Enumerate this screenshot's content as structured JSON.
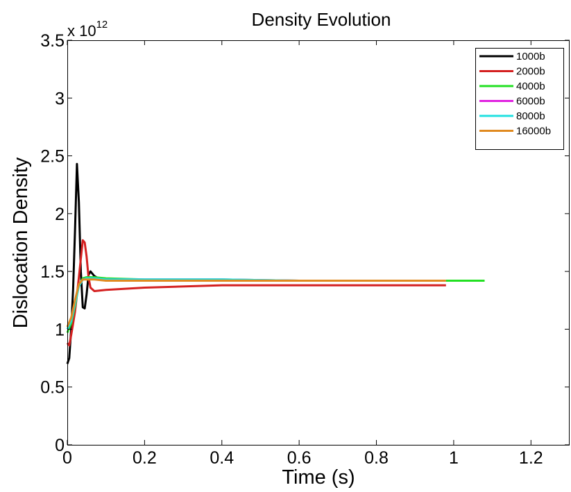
{
  "chart_data": {
    "type": "line",
    "title": "Density Evolution",
    "xlabel": "Time (s)",
    "ylabel": "Dislocation Density",
    "y_multiplier_base": "x 10",
    "y_multiplier_exponent": "12",
    "xlim": [
      0,
      1.3
    ],
    "ylim": [
      0,
      3.5
    ],
    "xticks": [
      0,
      0.2,
      0.4,
      0.6,
      0.8,
      1,
      1.2
    ],
    "xtick_labels": [
      "0",
      "0.2",
      "0.4",
      "0.6",
      "0.8",
      "1",
      "1.2"
    ],
    "yticks": [
      0,
      0.5,
      1,
      1.5,
      2,
      2.5,
      3,
      3.5
    ],
    "ytick_labels": [
      "0",
      "0.5",
      "1",
      "1.5",
      "2",
      "2.5",
      "3",
      "3.5"
    ],
    "grid": false,
    "legend_position": "top-right",
    "series": [
      {
        "name": "1000b",
        "color": "#000000",
        "x": [
          0,
          0.005,
          0.01,
          0.015,
          0.02,
          0.025,
          0.03,
          0.035,
          0.04,
          0.045,
          0.05,
          0.055,
          0.06,
          0.07,
          0.08,
          0.1,
          0.2,
          0.4,
          0.6,
          0.8,
          0.98
        ],
        "y": [
          0.7,
          0.75,
          1.0,
          1.35,
          1.85,
          2.43,
          2.1,
          1.5,
          1.19,
          1.18,
          1.3,
          1.47,
          1.5,
          1.46,
          1.44,
          1.43,
          1.42,
          1.42,
          1.42,
          1.42,
          1.42
        ]
      },
      {
        "name": "2000b",
        "color": "#d42020",
        "x": [
          0,
          0.005,
          0.01,
          0.015,
          0.02,
          0.03,
          0.04,
          0.045,
          0.05,
          0.055,
          0.06,
          0.07,
          0.1,
          0.2,
          0.4,
          0.6,
          0.8,
          0.98
        ],
        "y": [
          0.88,
          0.86,
          0.95,
          1.05,
          1.15,
          1.45,
          1.77,
          1.75,
          1.63,
          1.45,
          1.36,
          1.33,
          1.34,
          1.36,
          1.38,
          1.38,
          1.38,
          1.38
        ]
      },
      {
        "name": "4000b",
        "color": "#22e022",
        "x": [
          0,
          0.01,
          0.02,
          0.03,
          0.04,
          0.05,
          0.07,
          0.1,
          0.2,
          0.4,
          0.6,
          0.8,
          1.0,
          1.08
        ],
        "y": [
          0.97,
          1.05,
          1.2,
          1.38,
          1.44,
          1.45,
          1.45,
          1.44,
          1.43,
          1.43,
          1.42,
          1.42,
          1.42,
          1.42
        ]
      },
      {
        "name": "6000b",
        "color": "#e020e0",
        "x": [
          0,
          0.01,
          0.02,
          0.03,
          0.04,
          0.05,
          0.07,
          0.1,
          0.2,
          0.4,
          0.6,
          0.8,
          0.98
        ],
        "y": [
          1.0,
          1.07,
          1.22,
          1.38,
          1.43,
          1.44,
          1.44,
          1.43,
          1.43,
          1.43,
          1.42,
          1.42,
          1.42
        ]
      },
      {
        "name": "8000b",
        "color": "#20e0e0",
        "x": [
          0,
          0.01,
          0.02,
          0.03,
          0.04,
          0.05,
          0.07,
          0.1,
          0.2,
          0.4,
          0.6,
          0.8,
          0.98
        ],
        "y": [
          1.0,
          1.07,
          1.22,
          1.37,
          1.43,
          1.44,
          1.44,
          1.43,
          1.43,
          1.43,
          1.42,
          1.42,
          1.42
        ]
      },
      {
        "name": "16000b",
        "color": "#e08a20",
        "x": [
          0,
          0.01,
          0.02,
          0.03,
          0.04,
          0.05,
          0.07,
          0.1,
          0.2,
          0.4,
          0.6,
          0.8,
          0.98
        ],
        "y": [
          1.02,
          1.1,
          1.25,
          1.39,
          1.43,
          1.43,
          1.43,
          1.42,
          1.42,
          1.42,
          1.42,
          1.42,
          1.42
        ]
      }
    ]
  }
}
